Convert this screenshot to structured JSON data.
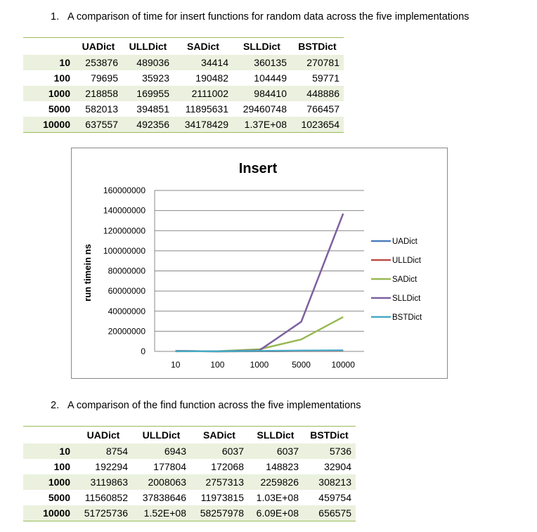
{
  "section1": {
    "number": "1.",
    "title": "A comparison of time for insert functions for random data across the five implementations"
  },
  "section2": {
    "number": "2.",
    "title": "A comparison of the find function across the five implementations"
  },
  "columns": [
    "UADict",
    "ULLDict",
    "SADict",
    "SLLDict",
    "BSTDict"
  ],
  "insert_table": {
    "rows": [
      {
        "n": "10",
        "values": [
          "253876",
          "489036",
          "34414",
          "360135",
          "270781"
        ]
      },
      {
        "n": "100",
        "values": [
          "79695",
          "35923",
          "190482",
          "104449",
          "59771"
        ]
      },
      {
        "n": "1000",
        "values": [
          "218858",
          "169955",
          "2111002",
          "984410",
          "448886"
        ]
      },
      {
        "n": "5000",
        "values": [
          "582013",
          "394851",
          "11895631",
          "29460748",
          "766457"
        ]
      },
      {
        "n": "10000",
        "values": [
          "637557",
          "492356",
          "34178429",
          "1.37E+08",
          "1023654"
        ]
      }
    ]
  },
  "find_table": {
    "rows": [
      {
        "n": "10",
        "values": [
          "8754",
          "6943",
          "6037",
          "6037",
          "5736"
        ]
      },
      {
        "n": "100",
        "values": [
          "192294",
          "177804",
          "172068",
          "148823",
          "32904"
        ]
      },
      {
        "n": "1000",
        "values": [
          "3119863",
          "2008063",
          "2757313",
          "2259826",
          "308213"
        ]
      },
      {
        "n": "5000",
        "values": [
          "11560852",
          "37838646",
          "11973815",
          "1.03E+08",
          "459754"
        ]
      },
      {
        "n": "10000",
        "values": [
          "51725736",
          "1.52E+08",
          "58257978",
          "6.09E+08",
          "656575"
        ]
      }
    ]
  },
  "chart_data": {
    "type": "line",
    "title": "Insert",
    "xlabel": "",
    "ylabel": "run timein ns",
    "categories": [
      "10",
      "100",
      "1000",
      "5000",
      "10000"
    ],
    "ylim": [
      0,
      160000000
    ],
    "yticks": [
      "0",
      "20000000",
      "40000000",
      "60000000",
      "80000000",
      "100000000",
      "120000000",
      "140000000",
      "160000000"
    ],
    "grid": true,
    "legend": "right",
    "series": [
      {
        "name": "UADict",
        "color": "#4a7ebb",
        "values": [
          253876,
          79695,
          218858,
          582013,
          637557
        ]
      },
      {
        "name": "ULLDict",
        "color": "#be4b48",
        "values": [
          489036,
          35923,
          169955,
          394851,
          492356
        ]
      },
      {
        "name": "SADict",
        "color": "#98b954",
        "values": [
          34414,
          190482,
          2111002,
          11895631,
          34178429
        ]
      },
      {
        "name": "SLLDict",
        "color": "#7d60a0",
        "values": [
          360135,
          104449,
          984410,
          29460748,
          137000000
        ]
      },
      {
        "name": "BSTDict",
        "color": "#46aac5",
        "values": [
          270781,
          59771,
          448886,
          766457,
          1023654
        ]
      }
    ]
  }
}
